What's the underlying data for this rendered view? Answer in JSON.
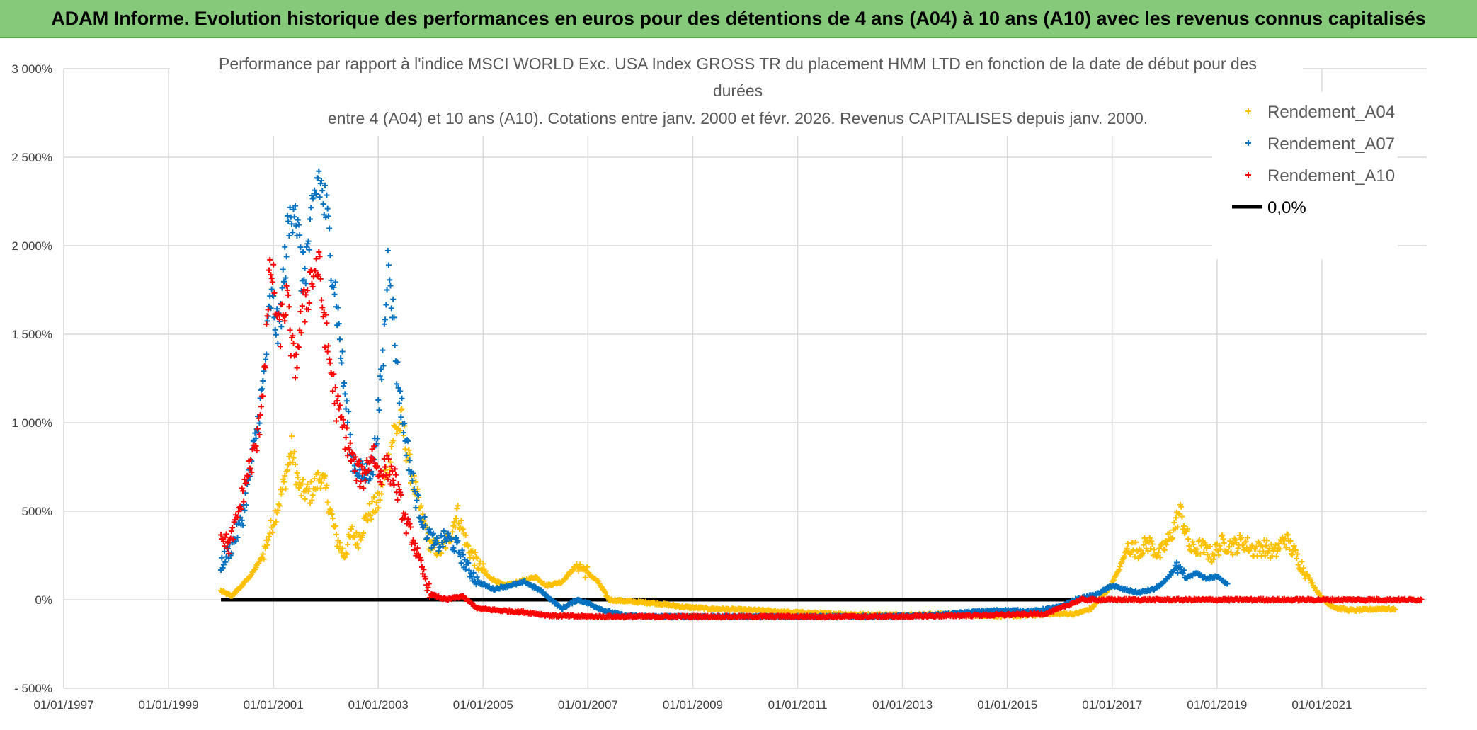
{
  "banner": {
    "text": "ADAM Informe. Evolution historique des performances en euros pour des détentions de 4 ans (A04) à 10 ans (A10) avec les revenus connus capitalisés"
  },
  "chart_data": {
    "type": "scatter",
    "title_lines": [
      "Performance par rapport à l'indice MSCI WORLD Exc. USA Index GROSS TR  du placement HMM LTD en fonction de la date de début pour des",
      "durées",
      "entre 4 (A04) et 10 ans (A10). Cotations entre janv. 2000 et févr. 2026. Revenus CAPITALISES depuis janv. 2000."
    ],
    "x_range": [
      1997.0,
      2023.0
    ],
    "y_range": [
      -500,
      3000
    ],
    "x_ticks": [
      1997,
      1999,
      2001,
      2003,
      2005,
      2007,
      2009,
      2011,
      2013,
      2015,
      2017,
      2019,
      2021
    ],
    "x_tick_labels": [
      "01/01/1997",
      "01/01/1999",
      "01/01/2001",
      "01/01/2003",
      "01/01/2005",
      "01/01/2007",
      "01/01/2009",
      "01/01/2011",
      "01/01/2013",
      "01/01/2015",
      "01/01/2017",
      "01/01/2019",
      "01/01/2021"
    ],
    "y_ticks": [
      -500,
      0,
      500,
      1000,
      1500,
      2000,
      2500,
      3000
    ],
    "y_tick_labels": [
      "- 500%",
      "0%",
      "500%",
      "1 000%",
      "1 500%",
      "2 000%",
      "2 500%",
      "3 000%"
    ],
    "grid": true,
    "legend_position": "top-right",
    "series": [
      {
        "name": "Rendement_A04",
        "color": "#ffc000",
        "marker": "plus",
        "points": [
          [
            2000.0,
            50
          ],
          [
            2000.2,
            20
          ],
          [
            2000.4,
            80
          ],
          [
            2000.6,
            150
          ],
          [
            2000.8,
            250
          ],
          [
            2001.0,
            450
          ],
          [
            2001.2,
            650
          ],
          [
            2001.35,
            850
          ],
          [
            2001.5,
            620
          ],
          [
            2001.7,
            600
          ],
          [
            2001.9,
            700
          ],
          [
            2002.0,
            620
          ],
          [
            2002.2,
            350
          ],
          [
            2002.35,
            250
          ],
          [
            2002.5,
            380
          ],
          [
            2002.6,
            330
          ],
          [
            2002.8,
            480
          ],
          [
            2003.0,
            550
          ],
          [
            2003.2,
            780
          ],
          [
            2003.3,
            950
          ],
          [
            2003.45,
            1000
          ],
          [
            2003.6,
            750
          ],
          [
            2003.8,
            500
          ],
          [
            2004.0,
            300
          ],
          [
            2004.2,
            280
          ],
          [
            2004.4,
            380
          ],
          [
            2004.5,
            500
          ],
          [
            2004.7,
            300
          ],
          [
            2004.9,
            200
          ],
          [
            2005.1,
            130
          ],
          [
            2005.4,
            80
          ],
          [
            2005.7,
            100
          ],
          [
            2006.0,
            130
          ],
          [
            2006.2,
            80
          ],
          [
            2006.5,
            100
          ],
          [
            2006.8,
            200
          ],
          [
            2007.0,
            150
          ],
          [
            2007.2,
            100
          ],
          [
            2007.4,
            0
          ],
          [
            2007.8,
            -10
          ],
          [
            2008.3,
            -20
          ],
          [
            2008.8,
            -40
          ],
          [
            2009.3,
            -50
          ],
          [
            2009.8,
            -55
          ],
          [
            2010.3,
            -60
          ],
          [
            2010.8,
            -70
          ],
          [
            2011.3,
            -75
          ],
          [
            2011.8,
            -80
          ],
          [
            2012.3,
            -85
          ],
          [
            2012.8,
            -85
          ],
          [
            2013.3,
            -85
          ],
          [
            2013.8,
            -80
          ],
          [
            2014.3,
            -85
          ],
          [
            2014.8,
            -90
          ],
          [
            2015.3,
            -90
          ],
          [
            2015.8,
            -80
          ],
          [
            2016.3,
            -80
          ],
          [
            2016.6,
            -50
          ],
          [
            2016.9,
            50
          ],
          [
            2017.1,
            150
          ],
          [
            2017.3,
            300
          ],
          [
            2017.5,
            280
          ],
          [
            2017.7,
            320
          ],
          [
            2017.9,
            250
          ],
          [
            2018.1,
            350
          ],
          [
            2018.3,
            500
          ],
          [
            2018.5,
            280
          ],
          [
            2018.7,
            300
          ],
          [
            2018.9,
            250
          ],
          [
            2019.1,
            320
          ],
          [
            2019.3,
            300
          ],
          [
            2019.5,
            330
          ],
          [
            2019.7,
            280
          ],
          [
            2019.9,
            300
          ],
          [
            2020.1,
            260
          ],
          [
            2020.3,
            350
          ],
          [
            2020.5,
            250
          ],
          [
            2020.7,
            150
          ],
          [
            2020.9,
            50
          ],
          [
            2021.1,
            -20
          ],
          [
            2021.3,
            -50
          ],
          [
            2021.6,
            -60
          ],
          [
            2021.9,
            -55
          ],
          [
            2022.2,
            -50
          ],
          [
            2022.4,
            -55
          ]
        ]
      },
      {
        "name": "Rendement_A07",
        "color": "#0070c0",
        "marker": "plus",
        "points": [
          [
            2000.0,
            200
          ],
          [
            2000.2,
            300
          ],
          [
            2000.4,
            450
          ],
          [
            2000.6,
            800
          ],
          [
            2000.8,
            1200
          ],
          [
            2000.95,
            1700
          ],
          [
            2001.1,
            1500
          ],
          [
            2001.25,
            2000
          ],
          [
            2001.4,
            2300
          ],
          [
            2001.55,
            1800
          ],
          [
            2001.7,
            2050
          ],
          [
            2001.85,
            2400
          ],
          [
            2002.0,
            2200
          ],
          [
            2002.2,
            1700
          ],
          [
            2002.35,
            1200
          ],
          [
            2002.5,
            800
          ],
          [
            2002.7,
            700
          ],
          [
            2002.9,
            750
          ],
          [
            2003.0,
            1050
          ],
          [
            2003.1,
            1400
          ],
          [
            2003.2,
            2000
          ],
          [
            2003.35,
            1300
          ],
          [
            2003.5,
            950
          ],
          [
            2003.7,
            600
          ],
          [
            2003.9,
            400
          ],
          [
            2004.1,
            300
          ],
          [
            2004.3,
            350
          ],
          [
            2004.5,
            300
          ],
          [
            2004.7,
            180
          ],
          [
            2004.9,
            100
          ],
          [
            2005.2,
            60
          ],
          [
            2005.5,
            80
          ],
          [
            2005.8,
            100
          ],
          [
            2006.1,
            50
          ],
          [
            2006.3,
            0
          ],
          [
            2006.5,
            -50
          ],
          [
            2006.8,
            0
          ],
          [
            2007.0,
            -20
          ],
          [
            2007.3,
            -60
          ],
          [
            2007.7,
            -90
          ],
          [
            2008.3,
            -95
          ],
          [
            2008.9,
            -95
          ],
          [
            2009.5,
            -95
          ],
          [
            2010.1,
            -95
          ],
          [
            2010.7,
            -95
          ],
          [
            2011.3,
            -95
          ],
          [
            2011.9,
            -95
          ],
          [
            2012.5,
            -95
          ],
          [
            2013.1,
            -90
          ],
          [
            2013.7,
            -85
          ],
          [
            2014.3,
            -70
          ],
          [
            2014.9,
            -60
          ],
          [
            2015.5,
            -65
          ],
          [
            2016.0,
            -40
          ],
          [
            2016.3,
            0
          ],
          [
            2016.7,
            30
          ],
          [
            2017.0,
            80
          ],
          [
            2017.2,
            60
          ],
          [
            2017.5,
            40
          ],
          [
            2017.8,
            60
          ],
          [
            2018.0,
            100
          ],
          [
            2018.2,
            180
          ],
          [
            2018.4,
            120
          ],
          [
            2018.6,
            150
          ],
          [
            2018.8,
            120
          ],
          [
            2019.0,
            130
          ],
          [
            2019.2,
            90
          ]
        ]
      },
      {
        "name": "Rendement_A10",
        "color": "#ff0000",
        "marker": "plus",
        "points": [
          [
            2000.0,
            380
          ],
          [
            2000.15,
            300
          ],
          [
            2000.3,
            450
          ],
          [
            2000.5,
            700
          ],
          [
            2000.7,
            900
          ],
          [
            2000.85,
            1400
          ],
          [
            2000.95,
            1900
          ],
          [
            2001.1,
            1500
          ],
          [
            2001.25,
            1700
          ],
          [
            2001.4,
            1300
          ],
          [
            2001.55,
            1600
          ],
          [
            2001.7,
            1800
          ],
          [
            2001.85,
            1900
          ],
          [
            2002.0,
            1500
          ],
          [
            2002.2,
            1100
          ],
          [
            2002.4,
            900
          ],
          [
            2002.55,
            750
          ],
          [
            2002.7,
            680
          ],
          [
            2002.9,
            850
          ],
          [
            2003.0,
            700
          ],
          [
            2003.15,
            750
          ],
          [
            2003.3,
            700
          ],
          [
            2003.5,
            450
          ],
          [
            2003.65,
            350
          ],
          [
            2003.8,
            200
          ],
          [
            2004.0,
            30
          ],
          [
            2004.3,
            0
          ],
          [
            2004.6,
            20
          ],
          [
            2004.9,
            -50
          ],
          [
            2005.3,
            -60
          ],
          [
            2005.8,
            -70
          ],
          [
            2006.3,
            -90
          ],
          [
            2007.0,
            -95
          ],
          [
            2008.0,
            -95
          ],
          [
            2009.0,
            -95
          ],
          [
            2010.0,
            -95
          ],
          [
            2011.0,
            -95
          ],
          [
            2012.0,
            -95
          ],
          [
            2013.0,
            -95
          ],
          [
            2014.0,
            -90
          ],
          [
            2015.0,
            -85
          ],
          [
            2015.7,
            -80
          ],
          [
            2016.0,
            -50
          ],
          [
            2016.4,
            0
          ],
          [
            2017.0,
            0
          ],
          [
            2018.0,
            0
          ],
          [
            2019.0,
            0
          ],
          [
            2020.0,
            0
          ],
          [
            2021.0,
            0
          ],
          [
            2022.0,
            0
          ],
          [
            2022.9,
            0
          ]
        ]
      }
    ],
    "reference_line": {
      "name": "0,0%",
      "color": "#000000",
      "value": 0,
      "x_from": 2000.0,
      "x_to": 2022.9
    }
  }
}
